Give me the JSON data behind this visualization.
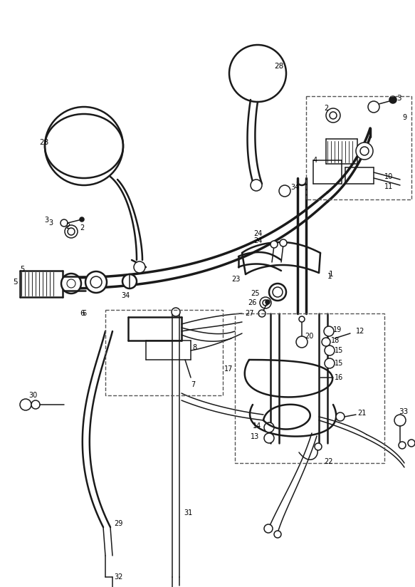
{
  "background_color": "#ffffff",
  "line_color": "#1a1a1a",
  "fig_width": 5.83,
  "fig_height": 8.24,
  "dpi": 100
}
